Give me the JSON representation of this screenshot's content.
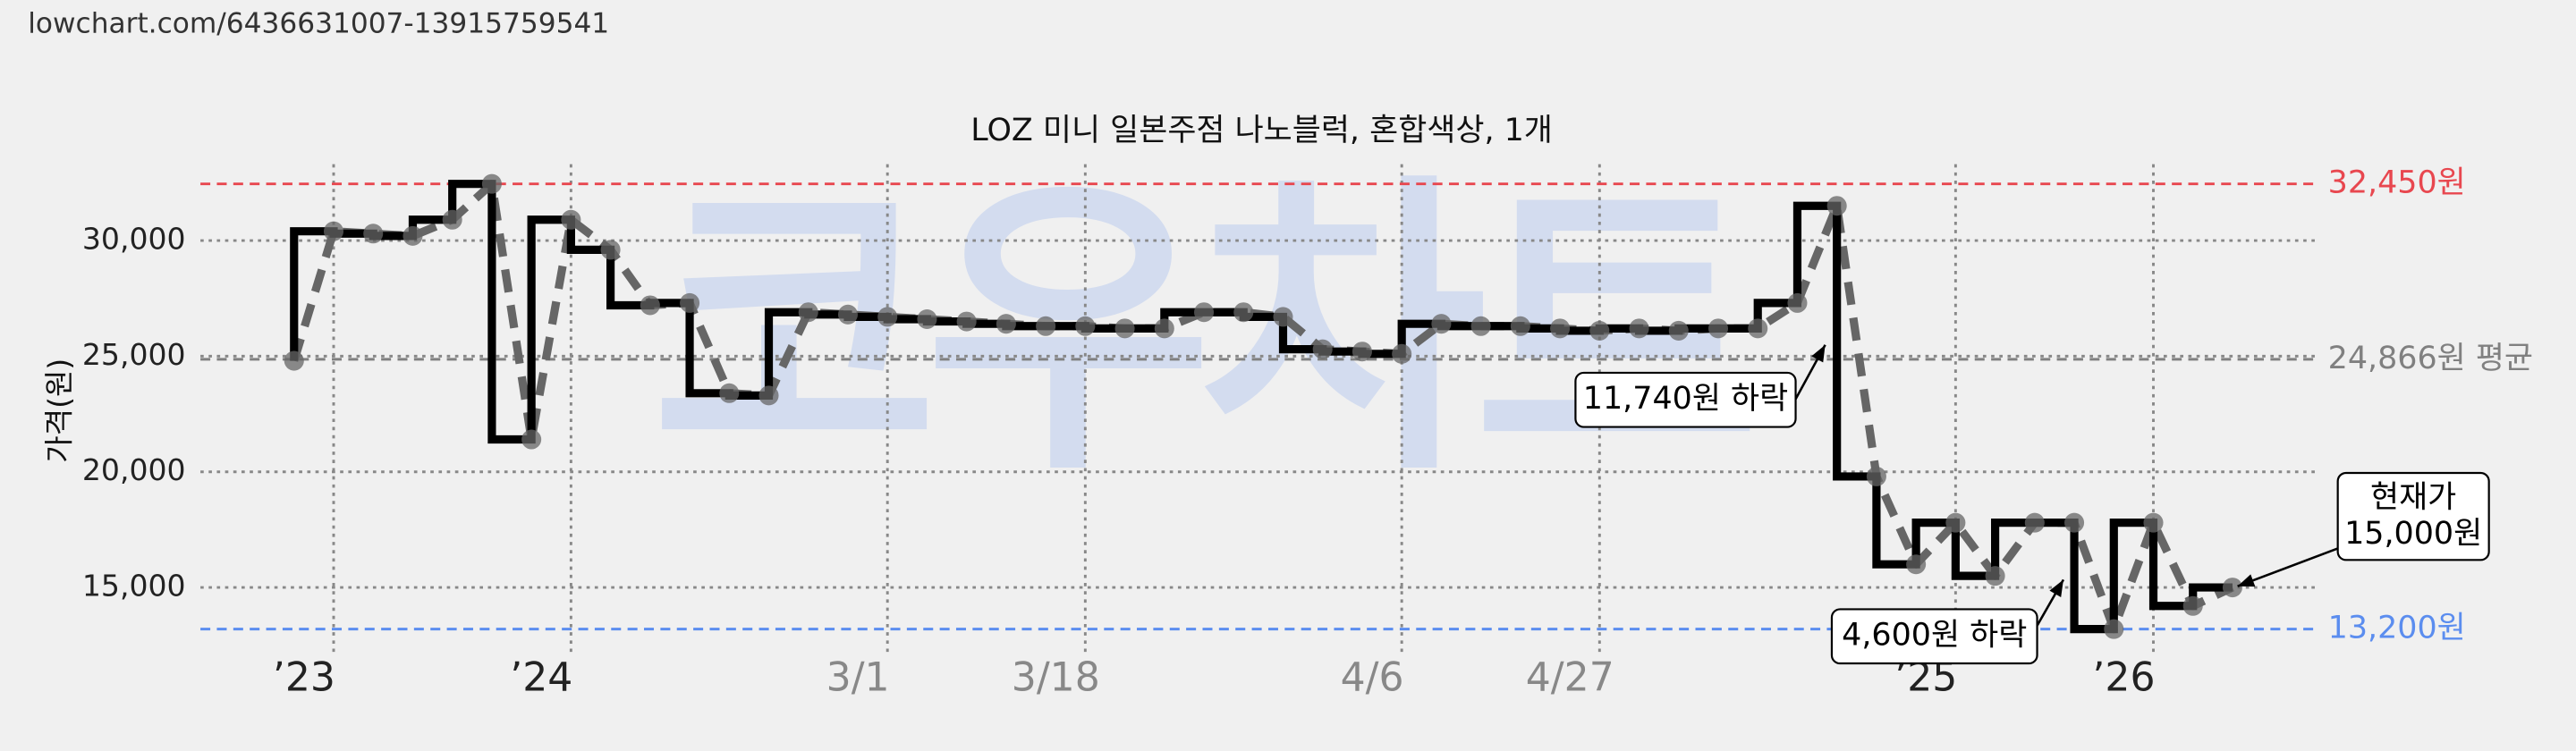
{
  "source_url": "lowchart.com/6436631007-13915759541",
  "chart_data": {
    "type": "step-line",
    "title": "LOZ 미니 일본주점 나노블럭, 혼합색상, 1개",
    "y_label": "가격(원)",
    "watermark": "코우차트",
    "categories": [
      null,
      "’23",
      null,
      null,
      null,
      null,
      null,
      "’24",
      null,
      null,
      null,
      null,
      null,
      null,
      null,
      "3/1",
      null,
      null,
      null,
      null,
      "3/18",
      null,
      null,
      null,
      null,
      null,
      null,
      null,
      "4/6",
      null,
      null,
      null,
      null,
      "4/27",
      null,
      null,
      null,
      null,
      null,
      null,
      null,
      null,
      "’25",
      null,
      null,
      null,
      null,
      "’26",
      null,
      null
    ],
    "series": [
      {
        "name": "가격",
        "color": "#000000",
        "marker_color": "#666666",
        "values": [
          24800,
          30400,
          30300,
          30200,
          30900,
          32450,
          21400,
          30900,
          29600,
          27200,
          27300,
          23400,
          23300,
          26900,
          26800,
          26700,
          26600,
          26500,
          26400,
          26300,
          26300,
          26200,
          26200,
          26900,
          26900,
          26700,
          25300,
          25200,
          25100,
          26400,
          26300,
          26300,
          26200,
          26100,
          26200,
          26100,
          26200,
          26200,
          27300,
          31500,
          19800,
          16000,
          17800,
          15500,
          17800,
          17800,
          13200,
          17800,
          14200,
          15000
        ]
      }
    ],
    "ylim": [
      12000,
      33300
    ],
    "yticks": [
      {
        "value": 15000,
        "label": "15,000"
      },
      {
        "value": 20000,
        "label": "20,000"
      },
      {
        "value": 25000,
        "label": "25,000"
      },
      {
        "value": 30000,
        "label": "30,000"
      }
    ],
    "grid": true,
    "reference_lines": [
      {
        "value": 32450,
        "label": "32,450원",
        "color": "#e8474f"
      },
      {
        "value": 24866,
        "label": "24,866원 평균",
        "color": "#808080"
      },
      {
        "value": 13200,
        "label": "13,200원",
        "color": "#5b8def"
      }
    ],
    "annotations": [
      {
        "lines": [
          "11,740원 하락"
        ]
      },
      {
        "lines": [
          "4,600원 하락"
        ]
      },
      {
        "lines": [
          "현재가",
          "15,000원"
        ]
      }
    ]
  }
}
